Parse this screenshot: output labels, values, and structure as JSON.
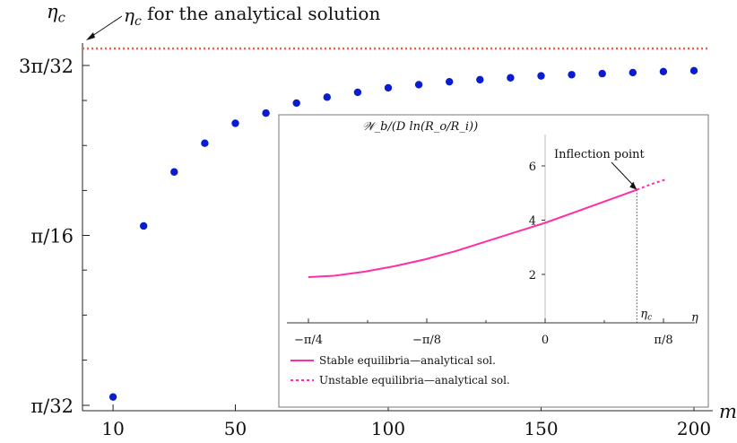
{
  "chart_data": [
    {
      "type": "scatter",
      "title": "",
      "xlabel": "m",
      "ylabel": "η_c",
      "xlim": [
        0,
        205
      ],
      "ylim": [
        0.09817,
        0.2945
      ],
      "x_ticks": [
        {
          "value": 10,
          "label": "10"
        },
        {
          "value": 50,
          "label": "50"
        },
        {
          "value": 100,
          "label": "100"
        },
        {
          "value": 150,
          "label": "150"
        },
        {
          "value": 200,
          "label": "200"
        }
      ],
      "y_ticks": [
        {
          "value": 0.09817,
          "label": "π/32"
        },
        {
          "value": 0.19635,
          "label": "π/16"
        },
        {
          "value": 0.29452,
          "label": "3π/32"
        }
      ],
      "y_minor_ticks": [
        0.1243,
        0.1503,
        0.1763,
        0.2223,
        0.2483,
        0.2743
      ],
      "series": [
        {
          "x": [
            10,
            20,
            30,
            40,
            50,
            60,
            70,
            80,
            90,
            100,
            110,
            120,
            130,
            140,
            150,
            160,
            170,
            180,
            190,
            200
          ],
          "y": [
            0.103,
            0.2018,
            0.233,
            0.2496,
            0.2611,
            0.267,
            0.2728,
            0.2762,
            0.279,
            0.2816,
            0.2834,
            0.2851,
            0.2863,
            0.2874,
            0.2885,
            0.2892,
            0.2898,
            0.2904,
            0.291,
            0.2915
          ],
          "color": "#0a1cd0"
        }
      ],
      "reference_line": {
        "y": 0.3043,
        "style": "dotted",
        "color": "#ff5a4e"
      },
      "annotation": "η_c for the analytical solution"
    },
    {
      "type": "line",
      "title": "",
      "ylabel": "𝒲_b/(D ln(R_o/R_i))",
      "xlabel": "η",
      "xlim": [
        -0.8247,
        0.432
      ],
      "ylim": [
        -0.6,
        7.2
      ],
      "x_ticks": [
        {
          "value": -0.7854,
          "label": "−π/4"
        },
        {
          "value": -0.3927,
          "label": "−π/8"
        },
        {
          "value": 0,
          "label": "0"
        },
        {
          "value": 0.3927,
          "label": "π/8"
        }
      ],
      "y_ticks": [
        {
          "value": 2,
          "label": "2"
        },
        {
          "value": 4,
          "label": "4"
        },
        {
          "value": 6,
          "label": "6"
        }
      ],
      "series": [
        {
          "name": "Stable equilibria—analytical sol.",
          "style": "solid",
          "color": "#ff2ea6",
          "x": [
            -0.7854,
            -0.7,
            -0.6,
            -0.5,
            -0.4,
            -0.3,
            -0.2,
            -0.1,
            0.0,
            0.1,
            0.2,
            0.3,
            0.3043
          ],
          "y": [
            1.9,
            1.95,
            2.1,
            2.3,
            2.55,
            2.85,
            3.2,
            3.55,
            3.9,
            4.3,
            4.7,
            5.1,
            5.12
          ]
        },
        {
          "name": "Unstable equilibria—analytical sol.",
          "style": "dashed",
          "color": "#ff2ea6",
          "x": [
            0.3043,
            0.35,
            0.4
          ],
          "y": [
            5.12,
            5.32,
            5.5
          ]
        }
      ],
      "marker_line": {
        "x": 0.3043,
        "label": "η_c",
        "style": "dotted"
      },
      "annotation": "Inflection point",
      "legend_position": "bottom-left"
    }
  ]
}
